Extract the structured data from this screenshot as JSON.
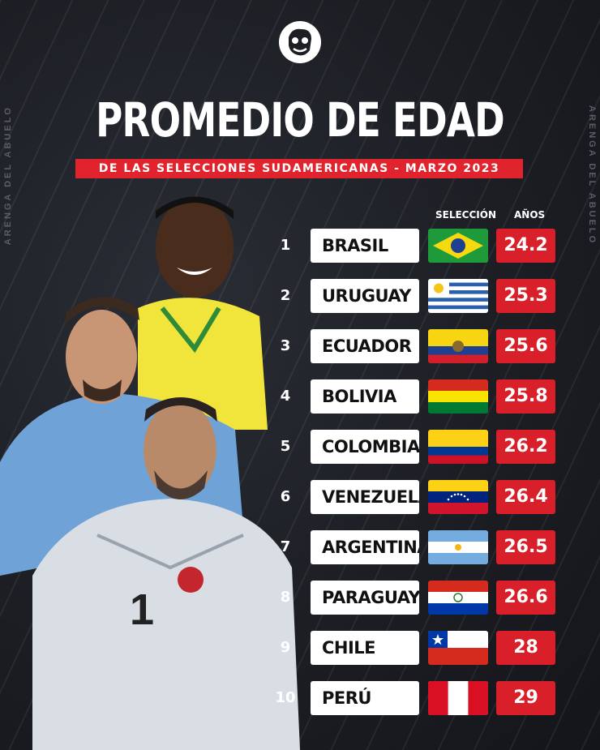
{
  "side_text": "ARENGA DEL ABUELO",
  "header": {
    "title": "PROMEDIO DE EDAD",
    "subtitle": "DE LAS SELECCIONES SUDAMERICANAS - MARZO 2023"
  },
  "columns": {
    "team": "SELECCIÓN",
    "age": "AÑOS"
  },
  "rows": [
    {
      "rank": "1",
      "team": "BRASIL",
      "age": "24.2",
      "flag": "brazil-flag"
    },
    {
      "rank": "2",
      "team": "URUGUAY",
      "age": "25.3",
      "flag": "uruguay-flag"
    },
    {
      "rank": "3",
      "team": "ECUADOR",
      "age": "25.6",
      "flag": "ecuador-flag"
    },
    {
      "rank": "4",
      "team": "BOLIVIA",
      "age": "25.8",
      "flag": "bolivia-flag"
    },
    {
      "rank": "5",
      "team": "COLOMBIA",
      "age": "26.2",
      "flag": "colombia-flag"
    },
    {
      "rank": "6",
      "team": "VENEZUELA",
      "age": "26.4",
      "flag": "venezuela-flag"
    },
    {
      "rank": "7",
      "team": "ARGENTINA",
      "age": "26.5",
      "flag": "argentina-flag"
    },
    {
      "rank": "8",
      "team": "PARAGUAY",
      "age": "26.6",
      "flag": "paraguay-flag"
    },
    {
      "rank": "9",
      "team": "CHILE",
      "age": "28",
      "flag": "chile-flag"
    },
    {
      "rank": "10",
      "team": "PERÚ",
      "age": "29",
      "flag": "peru-flag"
    }
  ],
  "colors": {
    "accent": "#d91f2a",
    "background": "#1c1e24",
    "box": "#ffffff"
  }
}
